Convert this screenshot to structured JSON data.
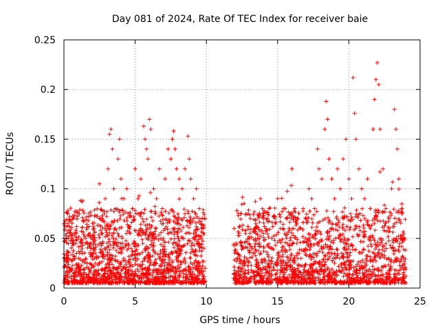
{
  "chart_data": {
    "type": "scatter",
    "title": "Day 081 of 2024, Rate Of TEC Index for receiver baie",
    "xlabel": "GPS time / hours",
    "ylabel": "ROTI / TECUs",
    "xlim": [
      0,
      25
    ],
    "ylim": [
      0,
      0.25
    ],
    "xticks": [
      0,
      5,
      10,
      15,
      20,
      25
    ],
    "yticks": [
      0,
      0.05,
      0.1,
      0.15,
      0.2,
      0.25
    ],
    "xtick_labels": [
      "0",
      "5",
      "10",
      "15",
      "20",
      "25"
    ],
    "ytick_labels": [
      "0",
      "0.05",
      "0.1",
      "0.15",
      "0.2",
      "0.25"
    ],
    "grid": true,
    "marker": "plus",
    "color": "#ff0000",
    "series": [
      {
        "name": "",
        "points": [
          [
            0.1,
            0.012
          ],
          [
            0.2,
            0.03
          ],
          [
            0.3,
            0.05
          ],
          [
            0.4,
            0.072
          ],
          [
            0.5,
            0.02
          ],
          [
            0.7,
            0.045
          ],
          [
            0.9,
            0.062
          ],
          [
            1.1,
            0.035
          ],
          [
            1.3,
            0.088
          ],
          [
            1.5,
            0.05
          ],
          [
            1.7,
            0.068
          ],
          [
            1.9,
            0.04
          ],
          [
            2.1,
            0.06
          ],
          [
            2.3,
            0.03
          ],
          [
            2.5,
            0.105
          ],
          [
            2.7,
            0.07
          ],
          [
            2.9,
            0.09
          ],
          [
            3.1,
            0.12
          ],
          [
            3.2,
            0.155
          ],
          [
            3.3,
            0.16
          ],
          [
            3.4,
            0.14
          ],
          [
            3.5,
            0.1
          ],
          [
            3.6,
            0.08
          ],
          [
            3.8,
            0.13
          ],
          [
            3.9,
            0.15
          ],
          [
            4.0,
            0.11
          ],
          [
            4.2,
            0.09
          ],
          [
            4.4,
            0.1
          ],
          [
            4.6,
            0.06
          ],
          [
            4.8,
            0.08
          ],
          [
            5.0,
            0.12
          ],
          [
            5.2,
            0.09
          ],
          [
            5.4,
            0.11
          ],
          [
            5.6,
            0.163
          ],
          [
            5.7,
            0.15
          ],
          [
            5.8,
            0.14
          ],
          [
            5.9,
            0.13
          ],
          [
            6.0,
            0.17
          ],
          [
            6.1,
            0.16
          ],
          [
            6.3,
            0.1
          ],
          [
            6.5,
            0.09
          ],
          [
            6.7,
            0.12
          ],
          [
            6.9,
            0.08
          ],
          [
            7.1,
            0.11
          ],
          [
            7.3,
            0.14
          ],
          [
            7.5,
            0.13
          ],
          [
            7.6,
            0.15
          ],
          [
            7.7,
            0.158
          ],
          [
            7.8,
            0.14
          ],
          [
            7.9,
            0.12
          ],
          [
            8.1,
            0.11
          ],
          [
            8.3,
            0.1
          ],
          [
            8.5,
            0.12
          ],
          [
            8.7,
            0.153
          ],
          [
            8.8,
            0.13
          ],
          [
            8.9,
            0.11
          ],
          [
            9.1,
            0.09
          ],
          [
            9.3,
            0.1
          ],
          [
            9.5,
            0.08
          ],
          [
            9.7,
            0.06
          ],
          [
            9.8,
            0.04
          ],
          [
            9.9,
            0.02
          ],
          [
            12.0,
            0.015
          ],
          [
            12.2,
            0.03
          ],
          [
            12.4,
            0.02
          ],
          [
            12.6,
            0.04
          ],
          [
            12.8,
            0.03
          ],
          [
            13.0,
            0.05
          ],
          [
            13.2,
            0.04
          ],
          [
            13.4,
            0.06
          ],
          [
            13.6,
            0.05
          ],
          [
            13.8,
            0.09
          ],
          [
            14.0,
            0.07
          ],
          [
            14.2,
            0.06
          ],
          [
            14.4,
            0.08
          ],
          [
            14.6,
            0.05
          ],
          [
            14.8,
            0.07
          ],
          [
            15.0,
            0.09
          ],
          [
            15.2,
            0.06
          ],
          [
            15.4,
            0.08
          ],
          [
            15.6,
            0.07
          ],
          [
            15.8,
            0.06
          ],
          [
            16.0,
            0.12
          ],
          [
            16.2,
            0.08
          ],
          [
            16.4,
            0.07
          ],
          [
            16.6,
            0.06
          ],
          [
            16.8,
            0.08
          ],
          [
            17.0,
            0.07
          ],
          [
            17.2,
            0.1
          ],
          [
            17.4,
            0.09
          ],
          [
            17.6,
            0.08
          ],
          [
            17.8,
            0.14
          ],
          [
            17.9,
            0.12
          ],
          [
            18.1,
            0.11
          ],
          [
            18.3,
            0.16
          ],
          [
            18.4,
            0.188
          ],
          [
            18.5,
            0.17
          ],
          [
            18.6,
            0.13
          ],
          [
            18.8,
            0.11
          ],
          [
            19.0,
            0.09
          ],
          [
            19.2,
            0.12
          ],
          [
            19.4,
            0.1
          ],
          [
            19.6,
            0.13
          ],
          [
            19.8,
            0.15
          ],
          [
            20.0,
            0.11
          ],
          [
            20.2,
            0.09
          ],
          [
            20.3,
            0.212
          ],
          [
            20.4,
            0.176
          ],
          [
            20.5,
            0.15
          ],
          [
            20.7,
            0.12
          ],
          [
            20.9,
            0.1
          ],
          [
            21.1,
            0.09
          ],
          [
            21.3,
            0.11
          ],
          [
            21.5,
            0.08
          ],
          [
            21.7,
            0.16
          ],
          [
            21.8,
            0.19
          ],
          [
            21.9,
            0.21
          ],
          [
            22.0,
            0.227
          ],
          [
            22.1,
            0.205
          ],
          [
            22.2,
            0.16
          ],
          [
            22.4,
            0.12
          ],
          [
            22.6,
            0.08
          ],
          [
            22.8,
            0.07
          ],
          [
            23.0,
            0.1
          ],
          [
            23.2,
            0.18
          ],
          [
            23.3,
            0.16
          ],
          [
            23.4,
            0.14
          ],
          [
            23.5,
            0.11
          ],
          [
            23.7,
            0.08
          ],
          [
            23.9,
            0.05
          ]
        ]
      }
    ]
  }
}
